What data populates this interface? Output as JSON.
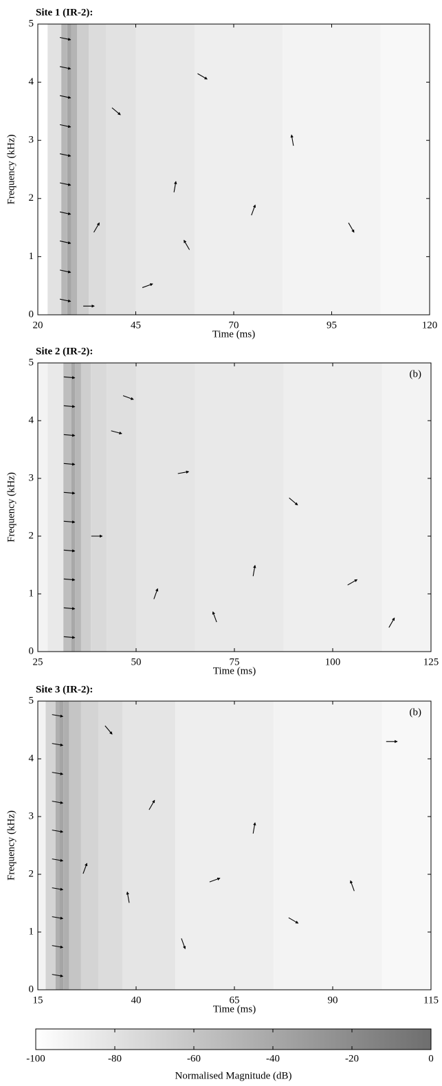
{
  "chart_data": [
    {
      "type": "quiver",
      "title": "Site 1 (IR-2):",
      "xlabel": "Time (ms)",
      "ylabel": "Frequency (kHz)",
      "xlim": [
        20,
        120
      ],
      "xticks": [
        20,
        45,
        70,
        95,
        120
      ],
      "ylim": [
        0,
        5
      ],
      "yticks": [
        0,
        1,
        2,
        3,
        4,
        5
      ],
      "magnitude": {
        "x": [
          20,
          25,
          27,
          28,
          29,
          31,
          35,
          40,
          50,
          70,
          95,
          120
        ],
        "values": [
          -100,
          -80,
          -50,
          -38,
          -48,
          -66,
          -76,
          -80,
          -84,
          -88,
          -92,
          -95
        ]
      },
      "quiver": {
        "x": [
          27,
          27,
          27,
          27,
          27,
          27,
          27,
          27,
          27,
          27,
          35,
          40,
          48,
          55,
          62,
          75,
          85,
          100,
          33,
          58
        ],
        "y": [
          0.25,
          0.75,
          1.25,
          1.75,
          2.25,
          2.75,
          3.25,
          3.75,
          4.25,
          4.75,
          1.5,
          3.5,
          0.5,
          2.2,
          4.1,
          1.8,
          3.0,
          1.5,
          0.15,
          1.2
        ],
        "angle": [
          -12,
          -12,
          -12,
          -12,
          -12,
          -12,
          -12,
          -12,
          -12,
          -12,
          60,
          -40,
          20,
          80,
          -30,
          70,
          100,
          -60,
          0,
          120
        ]
      }
    },
    {
      "type": "quiver",
      "title": "Site 2 (IR-2):",
      "annotation": "(b)",
      "xlabel": "Time (ms)",
      "ylabel": "Frequency (kHz)",
      "xlim": [
        25,
        125
      ],
      "xticks": [
        25,
        50,
        75,
        100,
        125
      ],
      "ylim": [
        0,
        5
      ],
      "yticks": [
        0,
        1,
        2,
        3,
        4,
        5
      ],
      "magnitude": {
        "x": [
          25,
          30,
          33,
          34,
          35,
          37,
          40,
          45,
          55,
          75,
          100,
          125
        ],
        "values": [
          -92,
          -85,
          -55,
          -40,
          -50,
          -66,
          -74,
          -78,
          -82,
          -85,
          -88,
          -92
        ]
      },
      "quiver": {
        "x": [
          33,
          33,
          33,
          33,
          33,
          33,
          33,
          33,
          33,
          33,
          40,
          48,
          55,
          62,
          70,
          80,
          90,
          105,
          115,
          45
        ],
        "y": [
          0.25,
          0.75,
          1.25,
          1.75,
          2.25,
          2.75,
          3.25,
          3.75,
          4.25,
          4.75,
          2.0,
          4.4,
          1.0,
          3.1,
          0.6,
          1.4,
          2.6,
          1.2,
          0.5,
          3.8
        ],
        "angle": [
          -5,
          -5,
          -5,
          -5,
          -5,
          -5,
          -5,
          -5,
          -5,
          -5,
          0,
          -20,
          70,
          10,
          110,
          80,
          -40,
          30,
          60,
          -15
        ]
      }
    },
    {
      "type": "quiver",
      "title": "Site 3 (IR-2):",
      "annotation": "(b)",
      "xlabel": "Time (ms)",
      "ylabel": "Frequency (kHz)",
      "xlim": [
        15,
        115
      ],
      "xticks": [
        15,
        40,
        65,
        90,
        115
      ],
      "ylim": [
        0,
        5
      ],
      "yticks": [
        0,
        1,
        2,
        3,
        4,
        5
      ],
      "magnitude": {
        "x": [
          15,
          19,
          20,
          21,
          22,
          24,
          28,
          33,
          40,
          60,
          90,
          115
        ],
        "values": [
          -92,
          -70,
          -45,
          -38,
          -45,
          -60,
          -70,
          -76,
          -82,
          -88,
          -92,
          -95
        ]
      },
      "quiver": {
        "x": [
          20,
          20,
          20,
          20,
          20,
          20,
          20,
          20,
          20,
          20,
          27,
          33,
          38,
          44,
          52,
          60,
          70,
          80,
          95,
          105
        ],
        "y": [
          0.25,
          0.75,
          1.25,
          1.75,
          2.25,
          2.75,
          3.25,
          3.75,
          4.25,
          4.75,
          2.1,
          4.5,
          1.6,
          3.2,
          0.8,
          1.9,
          2.8,
          1.2,
          1.8,
          4.3
        ],
        "angle": [
          -10,
          -10,
          -10,
          -10,
          -10,
          -10,
          -10,
          -10,
          -10,
          -10,
          70,
          -50,
          100,
          60,
          -70,
          20,
          80,
          -30,
          110,
          0
        ]
      }
    }
  ],
  "colorbar": {
    "label": "Normalised Magnitude (dB)",
    "lim": [
      -100,
      0
    ],
    "ticks": [
      -100,
      -80,
      -60,
      -40,
      -20,
      0
    ],
    "colors": [
      "#ffffff",
      "#6e6e6e"
    ]
  }
}
